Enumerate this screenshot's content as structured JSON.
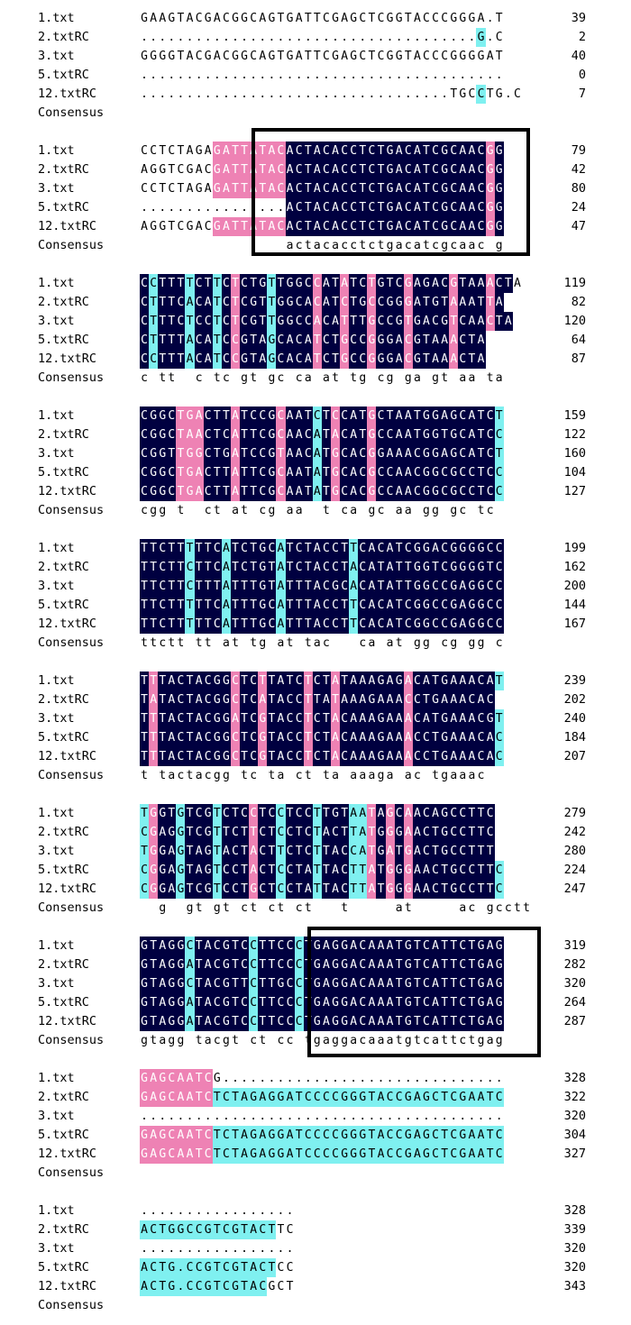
{
  "colors": {
    "identical": "#000040",
    "similar": "#ee82b4",
    "partial": "#7ff0f0"
  },
  "blocks": [
    {
      "rows": [
        {
          "name": "1.txt",
          "seq": "GAAGTACGACGGCAGTGATTCGAGCTCGGTACCCGGGA.T",
          "num": "39",
          "hl": ""
        },
        {
          "name": "2.txtRC",
          "seq": ".....................................G.C",
          "num": "2",
          "hl": ".....................................c.."
        },
        {
          "name": "3.txt",
          "seq": "GGGGTACGACGGCAGTGATTCGAGCTCGGTACCCGGGGAT",
          "num": "40",
          "hl": ""
        },
        {
          "name": "5.txtRC",
          "seq": "........................................",
          "num": "0",
          "hl": ""
        },
        {
          "name": "12.txtRC",
          "seq": "..................................TGCCTG.C",
          "num": "7",
          "hl": ".....................................c.."
        }
      ],
      "consensus": {
        "name": "Consensus",
        "seq": ""
      }
    },
    {
      "rows": [
        {
          "name": "1.txt",
          "seq": "CCTCTAGAGATTATACACTACACCTCTGACATCGCAACGG",
          "num": "79",
          "hl": "........ppppppppddddddddddddddddddddddpd"
        },
        {
          "name": "2.txtRC",
          "seq": "AGGTCGACGATTATACACTACACCTCTGACATCGCAACGG",
          "num": "42",
          "hl": "........ppppppppddddddddddddddddddddddpd"
        },
        {
          "name": "3.txt",
          "seq": "CCTCTAGAGATTATACACTACACCTCTGACATCGCAACGG",
          "num": "80",
          "hl": "........ppppppppddddddddddddddddddddddpd"
        },
        {
          "name": "5.txtRC",
          "seq": "................ACTACACCTCTGACATCGCAACGG",
          "num": "24",
          "hl": "................ddddddddddddddddddddddpd"
        },
        {
          "name": "12.txtRC",
          "seq": "AGGTCGACGATTATACACTACACCTCTGACATCGCAACGG",
          "num": "47",
          "hl": "........ppppppppddddddddddddddddddddddpd"
        }
      ],
      "consensus": {
        "name": "Consensus",
        "seq": "                actacacctctgacatcgcaac g"
      }
    },
    {
      "rows": [
        {
          "name": "1.txt",
          "seq": "CCTTTTCTTCTCTGTTGGCCATATCTGTCGAGACGTAAACTA",
          "num": "119",
          "hl": "dcdddcddcdpdddcddddpddpddpdddpddddpdddpdd"
        },
        {
          "name": "2.txtRC",
          "seq": "CTTTCACATCTCGTTGGCACATCTGCCGGGATGTAAATTA",
          "num": "82",
          "hl": "dcdddcddcdpdddcddddpddpddpdddpddddpdddpdd"
        },
        {
          "name": "3.txt",
          "seq": "CTTTCTCCTCTCGTTGGCCACATTTGCCGTGACGTCAACTA",
          "num": "120",
          "hl": "dcdddcddcdpdddcddddpddpddpdddpddddpdddpdd"
        },
        {
          "name": "5.txtRC",
          "seq": "CTTTTACATCCGTAGCACATCTGCCGGGACGTAAACTA",
          "num": "64",
          "hl": "dcdddcddcdpdddcddddpddpddpdddpddddpdddpdd"
        },
        {
          "name": "12.txtRC",
          "seq": "CCTTTACATCCGTAGCACATCTGCCGGGACGTAAACTA",
          "num": "87",
          "hl": "dcdddcddcdpdddcddddpddpddpdddpddddpdddpdd"
        }
      ],
      "consensus": {
        "name": "Consensus",
        "seq": "c tt  c tc gt gc ca at tg cg ga gt aa ta"
      }
    },
    {
      "rows": [
        {
          "name": "1.txt",
          "seq": "CGGCTGACTTATCCGCAATCTCCATGCTAATGGAGCATCT",
          "num": "159",
          "hl": "ddddpppdddpddddpdddcdpdddpdddddddddddddc"
        },
        {
          "name": "2.txtRC",
          "seq": "CGGCTAACTCATTCGCAACATACATGCCAATGGTGCATCC",
          "num": "122",
          "hl": "ddddpppdddpddddpdddcdpdddpdddddddddddddc"
        },
        {
          "name": "3.txt",
          "seq": "CGGTTGGCTGATCCGTAACATGCACGGAAACGGAGCATCT",
          "num": "160",
          "hl": "ddddpppdddpddddpdddcdpdddpdddddddddddddc"
        },
        {
          "name": "5.txtRC",
          "seq": "CGGCTGACTTATTCGCAATATGCACGCCAACGGCGCCTCC",
          "num": "104",
          "hl": "ddddpppdddpddddpdddcdpdddpdddddddddddddc"
        },
        {
          "name": "12.txtRC",
          "seq": "CGGCTGACTTATTCGCAATATGCACGCCAACGGCGCCTCC",
          "num": "127",
          "hl": "ddddpppdddpddddpdddcdpdddpdddddddddddddc"
        }
      ],
      "consensus": {
        "name": "Consensus",
        "seq": "cgg t  ct at cg aa  t ca gc aa gg gc tc"
      }
    },
    {
      "rows": [
        {
          "name": "1.txt",
          "seq": "TTCTTTTTCATCTGCATCTACCTTCACATCGGACGGGGCC",
          "num": "199",
          "hl": "dddddcdddcdddddcdddddddcdddddddddddddddd"
        },
        {
          "name": "2.txtRC",
          "seq": "TTCTTCTTCATCTGTATCTACCTACATATTGGTCGGGGTC",
          "num": "162",
          "hl": "dddddcdddcdddddcdddddddcdddddddddddddddd"
        },
        {
          "name": "3.txt",
          "seq": "TTCTTCTTTATTTGTATTTACGCACATATTGGCCGAGGCC",
          "num": "200",
          "hl": "dddddcdddcdddddcdddddddcdddddddddddddddd"
        },
        {
          "name": "5.txtRC",
          "seq": "TTCTTTTTCATTTGCATTTACCTTCACATCGGCCGAGGCC",
          "num": "144",
          "hl": "dddddcdddcdddddcdddddddcdddddddddddddddd"
        },
        {
          "name": "12.txtRC",
          "seq": "TTCTTTTTCATTTGCATTTACCTTCACATCGGCCGAGGCC",
          "num": "167",
          "hl": "dddddcdddcdddddcdddddddcdddddddddddddddd"
        }
      ],
      "consensus": {
        "name": "Consensus",
        "seq": "ttctt tt at tg at tac   ca at gg cg gg c"
      }
    },
    {
      "rows": [
        {
          "name": "1.txt",
          "seq": "TTTACTACGGCTCTTATCTCTATAAAGAGACATGAAACAT",
          "num": "239",
          "hl": "dpddddddddpddpddddpddpdddddddpdddddddddc"
        },
        {
          "name": "2.txtRC",
          "seq": "TATACTACGGCTCATACCTTATAAAGAAACCTGAAACAC",
          "num": "202",
          "hl": "dpddddddddpddpddddpddpdddddddpdddddddddc"
        },
        {
          "name": "3.txt",
          "seq": "TTTACTACGGATCGTACCTCTACAAAGAAACATGAAACGT",
          "num": "240",
          "hl": "dpddddddddpddpddddpddpdddddddpdddddddddc"
        },
        {
          "name": "5.txtRC",
          "seq": "TTTACTACGGCTCGTACCTCTACAAAGAAACCTGAAACAC",
          "num": "184",
          "hl": "dpddddddddpddpddddpddpdddddddpdddddddddc"
        },
        {
          "name": "12.txtRC",
          "seq": "TTTACTACGGCTCGTACCTCTACAAAGAAACCTGAAACAC",
          "num": "207",
          "hl": "dpddddddddpddpddddpddpdddddddpdddddddddc"
        }
      ],
      "consensus": {
        "name": "Consensus",
        "seq": "t tactacgg tc ta ct ta aaaga ac tgaaac"
      }
    },
    {
      "rows": [
        {
          "name": "1.txt",
          "seq": "TGGTGTCGTCTCCTCCTCCTTGTAATAGCAACAGCCTTC",
          "num": "279",
          "hl": "cpddcdddcdddpddcdddcdddccpdpdpddddddddd"
        },
        {
          "name": "2.txtRC",
          "seq": "CGAGGTCGTTCTTCTCCTCTACTTATGGGAACTGCCTTC",
          "num": "242",
          "hl": "cpddcdddcdddpddcdddcdddccpdpdpddddddddd"
        },
        {
          "name": "3.txt",
          "seq": "TGGAGTAGTACTACTTCTCTTACCATGATGACTGCCTTT",
          "num": "280",
          "hl": "cpddcdddcdddpddcdddcdddccpdpdpddddddddd"
        },
        {
          "name": "5.txtRC",
          "seq": "CGGAGTAGTCCTACTCCTATTACTTATGGGAACTGCCTTC",
          "num": "224",
          "hl": "cpddcdddcdddpddcdddcdddccpdpdpdddddddddc"
        },
        {
          "name": "12.txtRC",
          "seq": "CGGAGTCGTCCTGCTCCTATTACTTATGGGAACTGCCTTC",
          "num": "247",
          "hl": "cpddcdddcdddpddcdddcdddccpdpdpdddddddddc"
        }
      ],
      "consensus": {
        "name": "Consensus",
        "seq": "  g  gt gt ct ct ct   t     at     ac gcctt"
      }
    },
    {
      "rows": [
        {
          "name": "1.txt",
          "seq": "GTAGGCTACGTCCTTCCCTGAGGACAAATGTCATTCTGAG",
          "num": "319",
          "hl": "dddddcddddddcddddcdddddddddddddddddddddd"
        },
        {
          "name": "2.txtRC",
          "seq": "GTAGGATACGTCCTTCCCTGAGGACAAATGTCATTCTGAG",
          "num": "282",
          "hl": "dddddcddddddcddddcdddddddddddddddddddddd"
        },
        {
          "name": "3.txt",
          "seq": "GTAGGCTACGTTCTTGCCTGAGGACAAATGTCATTCTGAG",
          "num": "320",
          "hl": "dddddcddddddcddddcdddddddddddddddddddddd"
        },
        {
          "name": "5.txtRC",
          "seq": "GTAGGATACGTCCTTCCCTGAGGACAAATGTCATTCTGAG",
          "num": "264",
          "hl": "dddddcddddddcddddcdddddddddddddddddddddd"
        },
        {
          "name": "12.txtRC",
          "seq": "GTAGGATACGTCCTTCCCTGAGGACAAATGTCATTCTGAG",
          "num": "287",
          "hl": "dddddcddddddcddddcdddddddddddddddddddddd"
        }
      ],
      "consensus": {
        "name": "Consensus",
        "seq": "gtagg tacgt ct cc tgaggacaaatgtcattctgag"
      }
    },
    {
      "rows": [
        {
          "name": "1.txt",
          "seq": "GAGCAATCG...............................",
          "num": "328",
          "hl": "pppppppp"
        },
        {
          "name": "2.txtRC",
          "seq": "GAGCAATCTCTAGAGGATCCCCGGGTACCGAGCTCGAATC",
          "num": "322",
          "hl": "ppppppppcccccccccccccccccccccccccccccccc"
        },
        {
          "name": "3.txt",
          "seq": "........................................",
          "num": "320",
          "hl": ""
        },
        {
          "name": "5.txtRC",
          "seq": "GAGCAATCTCTAGAGGATCCCCGGGTACCGAGCTCGAATC",
          "num": "304",
          "hl": "ppppppppcccccccccccccccccccccccccccccccc"
        },
        {
          "name": "12.txtRC",
          "seq": "GAGCAATCTCTAGAGGATCCCCGGGTACCGAGCTCGAATC",
          "num": "327",
          "hl": "ppppppppcccccccccccccccccccccccccccccccc"
        }
      ],
      "consensus": {
        "name": "Consensus",
        "seq": ""
      }
    },
    {
      "rows": [
        {
          "name": "1.txt",
          "seq": ".................",
          "num": "328",
          "hl": ""
        },
        {
          "name": "2.txtRC",
          "seq": "ACTGGCCGTCGTACTTC",
          "num": "339",
          "hl": "ccccccccccccccc"
        },
        {
          "name": "3.txt",
          "seq": ".................",
          "num": "320",
          "hl": ""
        },
        {
          "name": "5.txtRC",
          "seq": "ACTG.CCGTCGTACTCC",
          "num": "320",
          "hl": "ccccccccccccccc"
        },
        {
          "name": "12.txtRC",
          "seq": "ACTG.CCGTCGTACGCT",
          "num": "343",
          "hl": "cccccccccccccc"
        }
      ],
      "consensus": {
        "name": "Consensus",
        "seq": ""
      }
    }
  ]
}
